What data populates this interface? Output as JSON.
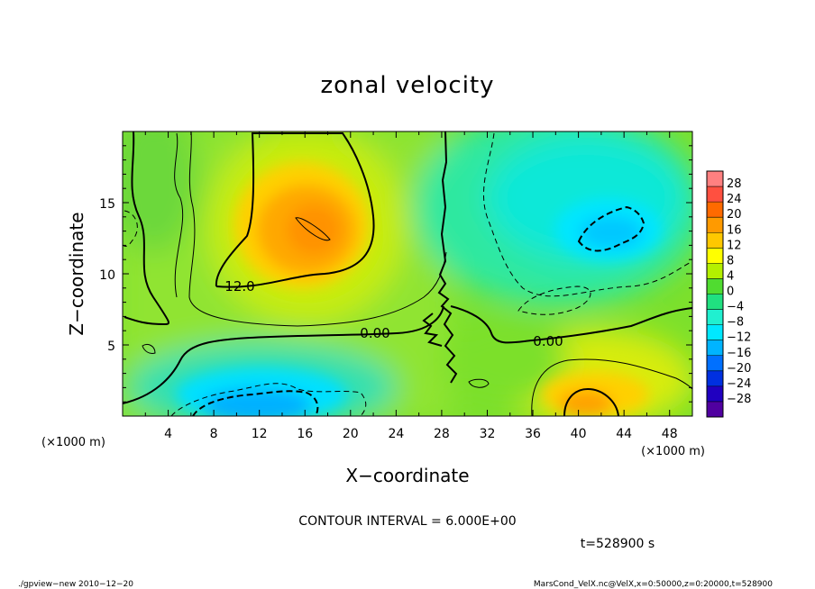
{
  "chart_data": {
    "type": "heatmap",
    "title": "zonal velocity",
    "xlabel": "X−coordinate",
    "ylabel": "Z−coordinate",
    "xunit": "(×1000 m)",
    "yunit": "(×1000 m)",
    "xlim": [
      0,
      50
    ],
    "ylim": [
      0,
      20
    ],
    "x_ticks": [
      4,
      8,
      12,
      16,
      20,
      24,
      28,
      32,
      36,
      40,
      44,
      48
    ],
    "y_ticks": [
      5,
      10,
      15
    ],
    "colorbar": {
      "labels": [
        "28",
        "24",
        "20",
        "16",
        "12",
        "8",
        "4",
        "0",
        "−4",
        "−8",
        "−12",
        "−16",
        "−20",
        "−24",
        "−28"
      ],
      "colors": [
        "#ff8080",
        "#ff5040",
        "#ff6a00",
        "#ff9a00",
        "#ffc800",
        "#ffff00",
        "#b4f000",
        "#50dc30",
        "#20e080",
        "#20f0d0",
        "#00e8ff",
        "#00b4ff",
        "#0070ff",
        "#0030e0",
        "#2000c0",
        "#5000a0"
      ]
    },
    "contour_labels": [
      "12.0",
      "0.00",
      "0.00"
    ],
    "contour_interval_text": "CONTOUR INTERVAL = 6.000E+00",
    "time_text": "t=528900 s",
    "features": [
      {
        "kind": "max",
        "x": 15,
        "z": 13,
        "value": 18
      },
      {
        "kind": "min",
        "x": 42,
        "z": 13,
        "value": -10
      },
      {
        "kind": "min",
        "x": 15,
        "z": 1.5,
        "value": -14
      },
      {
        "kind": "max",
        "x": 42,
        "z": 1,
        "value": 13
      }
    ]
  },
  "footer": {
    "left": "./gpview−new  2010−12−20",
    "right": "MarsCond_VelX.nc@VelX,x=0:50000,z=0:20000,t=528900"
  }
}
